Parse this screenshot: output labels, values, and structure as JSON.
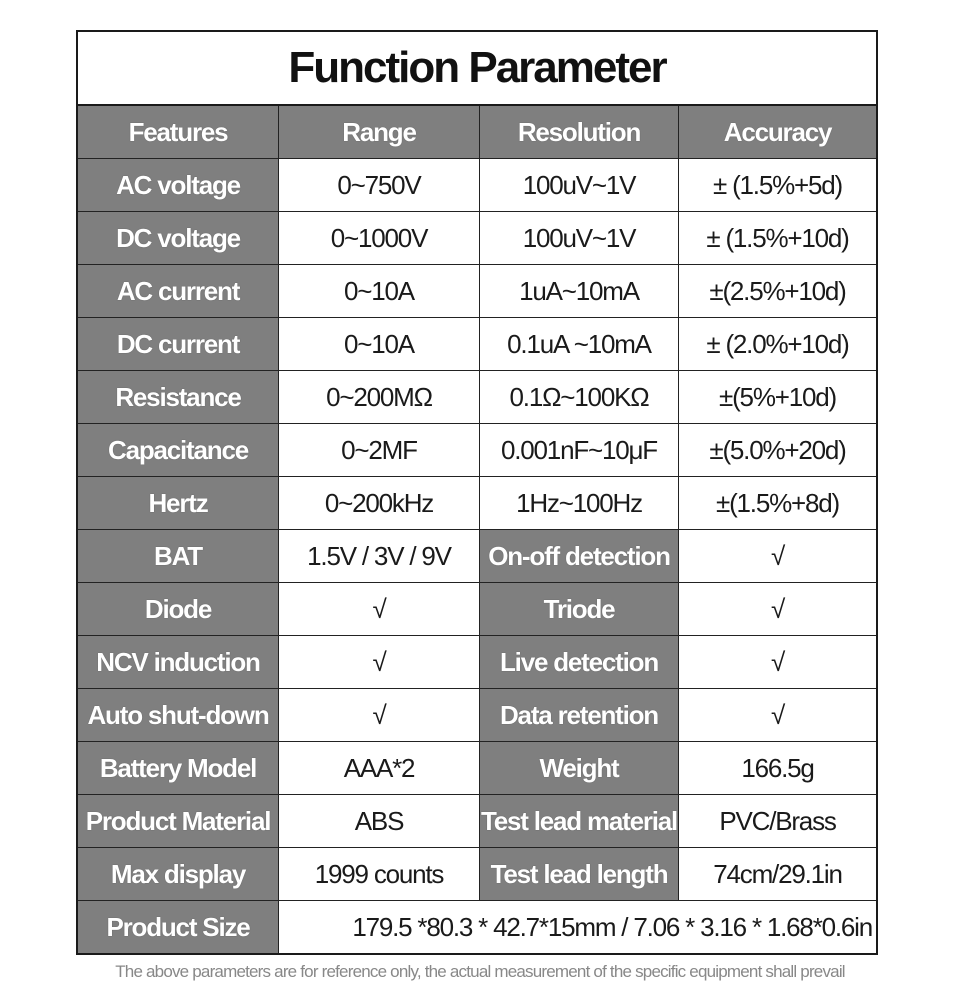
{
  "title": "Function Parameter",
  "colors": {
    "header_bg": "#7f7f7f",
    "header_text": "#ffffff",
    "border": "#1a1a1a"
  },
  "rows": [
    [
      {
        "t": "Features",
        "h": true
      },
      {
        "t": "Range",
        "h": true
      },
      {
        "t": "Resolution",
        "h": true
      },
      {
        "t": "Accuracy",
        "h": true
      }
    ],
    [
      {
        "t": "AC voltage",
        "h": true
      },
      {
        "t": "0~750V"
      },
      {
        "t": "100uV~1V"
      },
      {
        "t": "± (1.5%+5d)"
      }
    ],
    [
      {
        "t": "DC voltage",
        "h": true
      },
      {
        "t": "0~1000V"
      },
      {
        "t": "100uV~1V"
      },
      {
        "t": "± (1.5%+10d)"
      }
    ],
    [
      {
        "t": "AC current",
        "h": true
      },
      {
        "t": "0~10A"
      },
      {
        "t": "1uA~10mA"
      },
      {
        "t": "±(2.5%+10d)"
      }
    ],
    [
      {
        "t": "DC current",
        "h": true
      },
      {
        "t": "0~10A"
      },
      {
        "t": "0.1uA ~10mA"
      },
      {
        "t": "± (2.0%+10d)"
      }
    ],
    [
      {
        "t": "Resistance",
        "h": true
      },
      {
        "t": "0~200MΩ"
      },
      {
        "t": "0.1Ω~100KΩ"
      },
      {
        "t": "±(5%+10d)"
      }
    ],
    [
      {
        "t": "Capacitance",
        "h": true
      },
      {
        "t": "0~2MF"
      },
      {
        "t": "0.001nF~10μF"
      },
      {
        "t": "±(5.0%+20d)"
      }
    ],
    [
      {
        "t": "Hertz",
        "h": true
      },
      {
        "t": "0~200kHz"
      },
      {
        "t": "1Hz~100Hz"
      },
      {
        "t": "±(1.5%+8d)"
      }
    ],
    [
      {
        "t": "BAT",
        "h": true
      },
      {
        "t": "1.5V / 3V / 9V"
      },
      {
        "t": "On-off detection",
        "h": true
      },
      {
        "t": "√"
      }
    ],
    [
      {
        "t": "Diode",
        "h": true
      },
      {
        "t": "√"
      },
      {
        "t": "Triode",
        "h": true
      },
      {
        "t": "√"
      }
    ],
    [
      {
        "t": "NCV induction",
        "h": true
      },
      {
        "t": "√"
      },
      {
        "t": "Live detection",
        "h": true
      },
      {
        "t": "√"
      }
    ],
    [
      {
        "t": "Auto shut-down",
        "h": true
      },
      {
        "t": "√"
      },
      {
        "t": "Data retention",
        "h": true
      },
      {
        "t": "√"
      }
    ],
    [
      {
        "t": "Battery Model",
        "h": true
      },
      {
        "t": "AAA*2"
      },
      {
        "t": "Weight",
        "h": true
      },
      {
        "t": "166.5g"
      }
    ],
    [
      {
        "t": "Product Material",
        "h": true
      },
      {
        "t": "ABS"
      },
      {
        "t": "Test lead material",
        "h": true
      },
      {
        "t": "PVC/Brass"
      }
    ],
    [
      {
        "t": "Max display",
        "h": true
      },
      {
        "t": "1999 counts"
      },
      {
        "t": "Test lead length",
        "h": true
      },
      {
        "t": "74cm/29.1in"
      }
    ],
    [
      {
        "t": "Product Size",
        "h": true
      },
      {
        "t": "179.5 *80.3 * 42.7*15mm  /  7.06 * 3.16 * 1.68*0.6in",
        "wide": true
      }
    ]
  ],
  "footnote": "The above parameters are for reference only, the actual measurement of the specific equipment shall prevail"
}
